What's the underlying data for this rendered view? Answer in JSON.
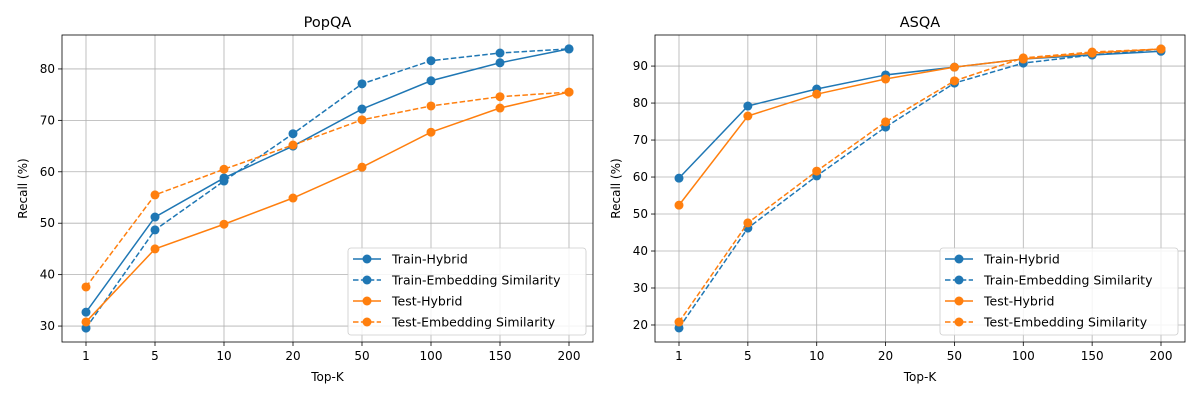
{
  "chart_data": [
    {
      "type": "line",
      "title": "PopQA",
      "xlabel": "Top-K",
      "ylabel": "Recall (%)",
      "categories": [
        "1",
        "5",
        "10",
        "20",
        "50",
        "100",
        "150",
        "200"
      ],
      "yticks": [
        30,
        40,
        50,
        60,
        70,
        80
      ],
      "ylim": [
        26.9,
        86.6
      ],
      "grid": true,
      "legend_position": "lower-right",
      "series": [
        {
          "name": "Train-Hybrid",
          "color": "#1f77b4",
          "dashed": false,
          "values": [
            32.7,
            51.2,
            58.8,
            65.0,
            72.2,
            77.7,
            81.2,
            83.9
          ]
        },
        {
          "name": "Train-Embedding Similarity",
          "color": "#1f77b4",
          "dashed": true,
          "values": [
            29.6,
            48.7,
            58.2,
            67.4,
            77.1,
            81.6,
            83.1,
            83.9
          ]
        },
        {
          "name": "Test-Hybrid",
          "color": "#ff7f0e",
          "dashed": false,
          "values": [
            30.8,
            45.0,
            49.8,
            54.9,
            60.9,
            67.7,
            72.4,
            75.5
          ]
        },
        {
          "name": "Test-Embedding Similarity",
          "color": "#ff7f0e",
          "dashed": true,
          "values": [
            37.6,
            55.5,
            60.5,
            65.2,
            70.1,
            72.8,
            74.6,
            75.5
          ]
        }
      ]
    },
    {
      "type": "line",
      "title": "ASQA",
      "xlabel": "Top-K",
      "ylabel": "Recall (%)",
      "categories": [
        "1",
        "5",
        "10",
        "20",
        "50",
        "100",
        "150",
        "200"
      ],
      "yticks": [
        20,
        30,
        40,
        50,
        60,
        70,
        80,
        90
      ],
      "ylim": [
        15.4,
        98.4
      ],
      "grid": true,
      "legend_position": "lower-right",
      "series": [
        {
          "name": "Train-Hybrid",
          "color": "#1f77b4",
          "dashed": false,
          "values": [
            59.7,
            79.2,
            83.8,
            87.6,
            89.7,
            91.9,
            93.0,
            94.0
          ]
        },
        {
          "name": "Train-Embedding Similarity",
          "color": "#1f77b4",
          "dashed": true,
          "values": [
            19.2,
            46.2,
            60.3,
            73.5,
            85.4,
            90.8,
            93.0,
            94.6
          ]
        },
        {
          "name": "Test-Hybrid",
          "color": "#ff7f0e",
          "dashed": false,
          "values": [
            52.4,
            76.5,
            82.4,
            86.5,
            89.7,
            91.9,
            93.5,
            94.6
          ]
        },
        {
          "name": "Test-Embedding Similarity",
          "color": "#ff7f0e",
          "dashed": true,
          "values": [
            20.8,
            47.6,
            61.6,
            74.9,
            86.0,
            92.2,
            93.8,
            94.6
          ]
        }
      ]
    }
  ]
}
